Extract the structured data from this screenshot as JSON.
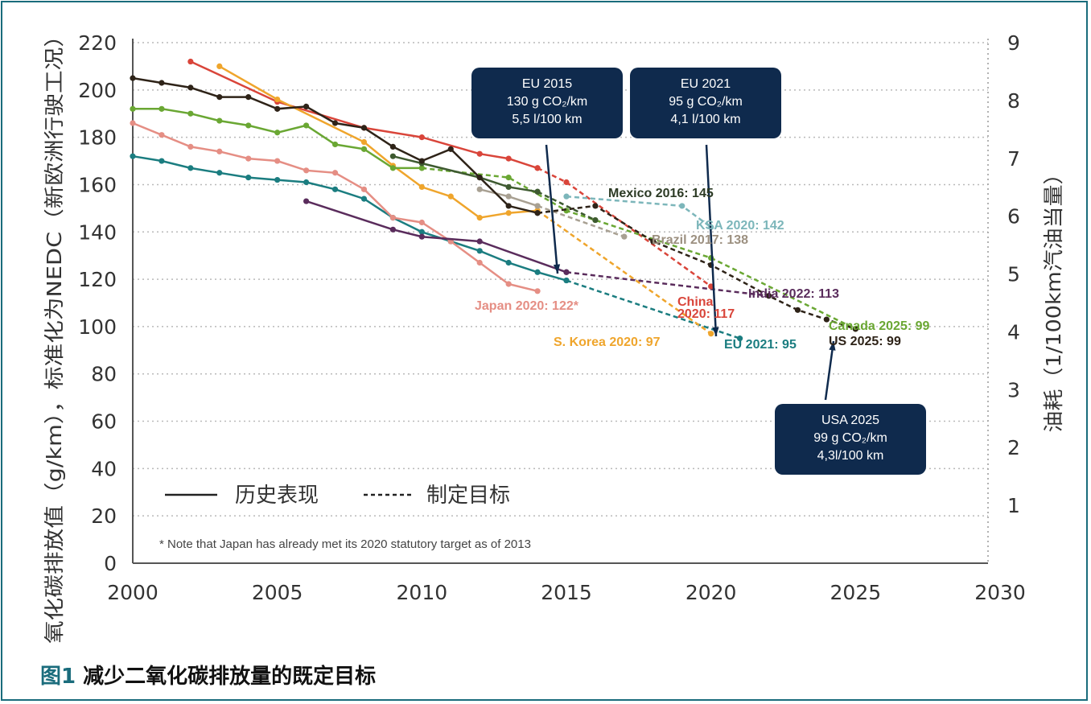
{
  "caption": {
    "number": "图1",
    "text": " 减少二氧化碳排放量的既定目标"
  },
  "callouts": [
    {
      "lines": [
        "EU 2015",
        "130 g CO₂/km",
        "5,5 l/100 km"
      ]
    },
    {
      "lines": [
        "EU 2021",
        "95 g CO₂/km",
        "4,1 l/100 km"
      ]
    },
    {
      "lines": [
        "USA 2025",
        "99 g CO₂/km",
        "4,3l/100 km"
      ]
    }
  ],
  "chart_data": {
    "type": "line",
    "xlabel": "",
    "ylabel": "氧化碳排放值（g/km），标准化为NEDC（新欧洲行驶工况）",
    "y2label": "油耗（1/100km汽油当量）",
    "xlim": [
      2000,
      2030
    ],
    "ylim": [
      0,
      220
    ],
    "y2lim": [
      0,
      9
    ],
    "x_ticks": [
      2000,
      2005,
      2010,
      2015,
      2020,
      2025,
      2030
    ],
    "y_ticks": [
      0,
      20,
      40,
      60,
      80,
      100,
      120,
      140,
      160,
      180,
      200,
      220
    ],
    "y2_ticks": [
      1,
      2,
      3,
      4,
      5,
      6,
      7,
      8,
      9
    ],
    "grid": "horizontal dotted",
    "legend": {
      "historical": "历史表现",
      "target": "制定目标",
      "position": "bottom-left"
    },
    "note": "* Note that Japan has already met its 2020 statutory target as of 2013",
    "series": [
      {
        "label": "EU 2021: 95",
        "color": "#1b7d80",
        "historical": [
          [
            2000,
            172
          ],
          [
            2001,
            170
          ],
          [
            2002,
            167
          ],
          [
            2003,
            165
          ],
          [
            2004,
            163
          ],
          [
            2005,
            162
          ],
          [
            2006,
            161
          ],
          [
            2007,
            158
          ],
          [
            2008,
            154
          ],
          [
            2009,
            146
          ],
          [
            2010,
            140
          ],
          [
            2011,
            136
          ],
          [
            2012,
            132
          ],
          [
            2013,
            127
          ],
          [
            2014,
            123
          ],
          [
            2015,
            119.5
          ]
        ],
        "target": [
          [
            2015,
            119.5
          ],
          [
            2021,
            95
          ]
        ]
      },
      {
        "label": "Japan 2020: 122*",
        "color": "#e58e84",
        "historical": [
          [
            2000,
            186
          ],
          [
            2001,
            181
          ],
          [
            2002,
            176
          ],
          [
            2003,
            174
          ],
          [
            2004,
            171
          ],
          [
            2005,
            170
          ],
          [
            2006,
            166
          ],
          [
            2007,
            165
          ],
          [
            2008,
            158
          ],
          [
            2009,
            146
          ],
          [
            2010,
            144
          ],
          [
            2011,
            136
          ],
          [
            2012,
            127
          ],
          [
            2013,
            118
          ],
          [
            2014,
            115
          ]
        ],
        "target": []
      },
      {
        "label": "India 2022: 113",
        "color": "#5a2c5c",
        "historical": [
          [
            2006,
            153
          ],
          [
            2009,
            141
          ],
          [
            2010,
            138
          ],
          [
            2012,
            136
          ],
          [
            2015,
            123
          ]
        ],
        "target": [
          [
            2015,
            123
          ],
          [
            2022,
            113
          ]
        ]
      },
      {
        "label": "China 2020: 117",
        "color": "#d9453a",
        "historical": [
          [
            2002,
            212
          ],
          [
            2005,
            195
          ],
          [
            2008,
            184
          ],
          [
            2010,
            180
          ],
          [
            2012,
            173
          ],
          [
            2013,
            171
          ],
          [
            2014,
            167
          ]
        ],
        "target": [
          [
            2014,
            167
          ],
          [
            2015,
            161
          ],
          [
            2020,
            117
          ]
        ]
      },
      {
        "label": "S. Korea 2020: 97",
        "color": "#efa52c",
        "historical": [
          [
            2003,
            210
          ],
          [
            2005,
            196
          ],
          [
            2008,
            178
          ],
          [
            2009,
            168
          ],
          [
            2010,
            159
          ],
          [
            2011,
            155
          ],
          [
            2012,
            146
          ],
          [
            2013,
            148
          ],
          [
            2014,
            149
          ]
        ],
        "target": [
          [
            2014,
            149
          ],
          [
            2020,
            97
          ]
        ]
      },
      {
        "label": "Canada 2025: 99",
        "color": "#6aa733",
        "historical": [
          [
            2000,
            192
          ],
          [
            2001,
            192
          ],
          [
            2002,
            190
          ],
          [
            2003,
            187
          ],
          [
            2004,
            185
          ],
          [
            2005,
            182
          ],
          [
            2006,
            185
          ],
          [
            2007,
            177
          ],
          [
            2008,
            175
          ],
          [
            2009,
            167
          ],
          [
            2010,
            167
          ]
        ],
        "target": [
          [
            2010,
            167
          ],
          [
            2013,
            163
          ],
          [
            2015,
            149
          ],
          [
            2016,
            145
          ],
          [
            2020,
            129
          ],
          [
            2025,
            99
          ]
        ]
      },
      {
        "label": "Mexico 2016: 145",
        "color": "#3e5a30",
        "historical": [
          [
            2009,
            172
          ],
          [
            2010,
            169
          ],
          [
            2012,
            163
          ],
          [
            2013,
            159
          ],
          [
            2014,
            157
          ]
        ],
        "target": [
          [
            2014,
            157
          ],
          [
            2016,
            145
          ]
        ]
      },
      {
        "label": "KSA 2020: 142",
        "color": "#7cb6ba",
        "historical": [],
        "target": [
          [
            2015,
            155
          ],
          [
            2019,
            151
          ],
          [
            2020,
            142
          ]
        ]
      },
      {
        "label": "Brazil 2017: 138",
        "color": "#a8a092",
        "historical": [
          [
            2012,
            158
          ],
          [
            2013,
            155
          ],
          [
            2014,
            151
          ]
        ],
        "target": [
          [
            2014,
            151
          ],
          [
            2017,
            138
          ]
        ]
      },
      {
        "label": "US 2025: 99",
        "color": "#2e2318",
        "historical": [
          [
            2000,
            205
          ],
          [
            2001,
            203
          ],
          [
            2002,
            201
          ],
          [
            2003,
            197
          ],
          [
            2004,
            197
          ],
          [
            2005,
            192
          ],
          [
            2006,
            193
          ],
          [
            2007,
            186
          ],
          [
            2008,
            184
          ],
          [
            2009,
            176
          ],
          [
            2010,
            170
          ],
          [
            2011,
            175
          ],
          [
            2012,
            163
          ],
          [
            2013,
            151
          ],
          [
            2014,
            148
          ]
        ],
        "target": [
          [
            2014,
            148
          ],
          [
            2016,
            151
          ],
          [
            2018,
            136
          ],
          [
            2020,
            126
          ],
          [
            2022,
            113
          ],
          [
            2023,
            107
          ],
          [
            2024,
            103
          ],
          [
            2025,
            99
          ]
        ]
      }
    ]
  }
}
